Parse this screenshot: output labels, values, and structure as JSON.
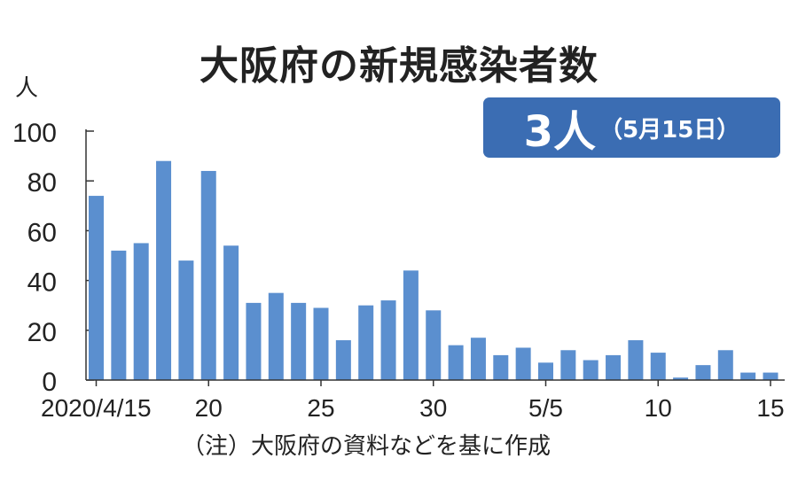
{
  "title": "大阪府の新規感染者数",
  "badge": {
    "value": "3人",
    "date": "（5月15日）"
  },
  "note": "（注）大阪府の資料などを基に作成",
  "chart_data": {
    "type": "bar",
    "ylabel": "人",
    "ylim": [
      0,
      100
    ],
    "yticks": [
      "0",
      "20",
      "40",
      "60",
      "80",
      "100"
    ],
    "xticks": [
      {
        "index": 0,
        "label": "2020/4/15"
      },
      {
        "index": 5,
        "label": "20"
      },
      {
        "index": 10,
        "label": "25"
      },
      {
        "index": 15,
        "label": "30"
      },
      {
        "index": 20,
        "label": "5/5"
      },
      {
        "index": 25,
        "label": "10"
      },
      {
        "index": 30,
        "label": "15"
      }
    ],
    "categories": [
      "4/15",
      "4/16",
      "4/17",
      "4/18",
      "4/19",
      "4/20",
      "4/21",
      "4/22",
      "4/23",
      "4/24",
      "4/25",
      "4/26",
      "4/27",
      "4/28",
      "4/29",
      "4/30",
      "5/1",
      "5/2",
      "5/3",
      "5/4",
      "5/5",
      "5/6",
      "5/7",
      "5/8",
      "5/9",
      "5/10",
      "5/11",
      "5/12",
      "5/13",
      "5/14",
      "5/15"
    ],
    "values": [
      74,
      52,
      55,
      88,
      48,
      84,
      54,
      31,
      35,
      31,
      29,
      16,
      30,
      32,
      44,
      28,
      14,
      17,
      10,
      13,
      7,
      12,
      8,
      10,
      16,
      11,
      1,
      6,
      12,
      3,
      3
    ],
    "color": "#5b8fcf",
    "grid": false
  }
}
